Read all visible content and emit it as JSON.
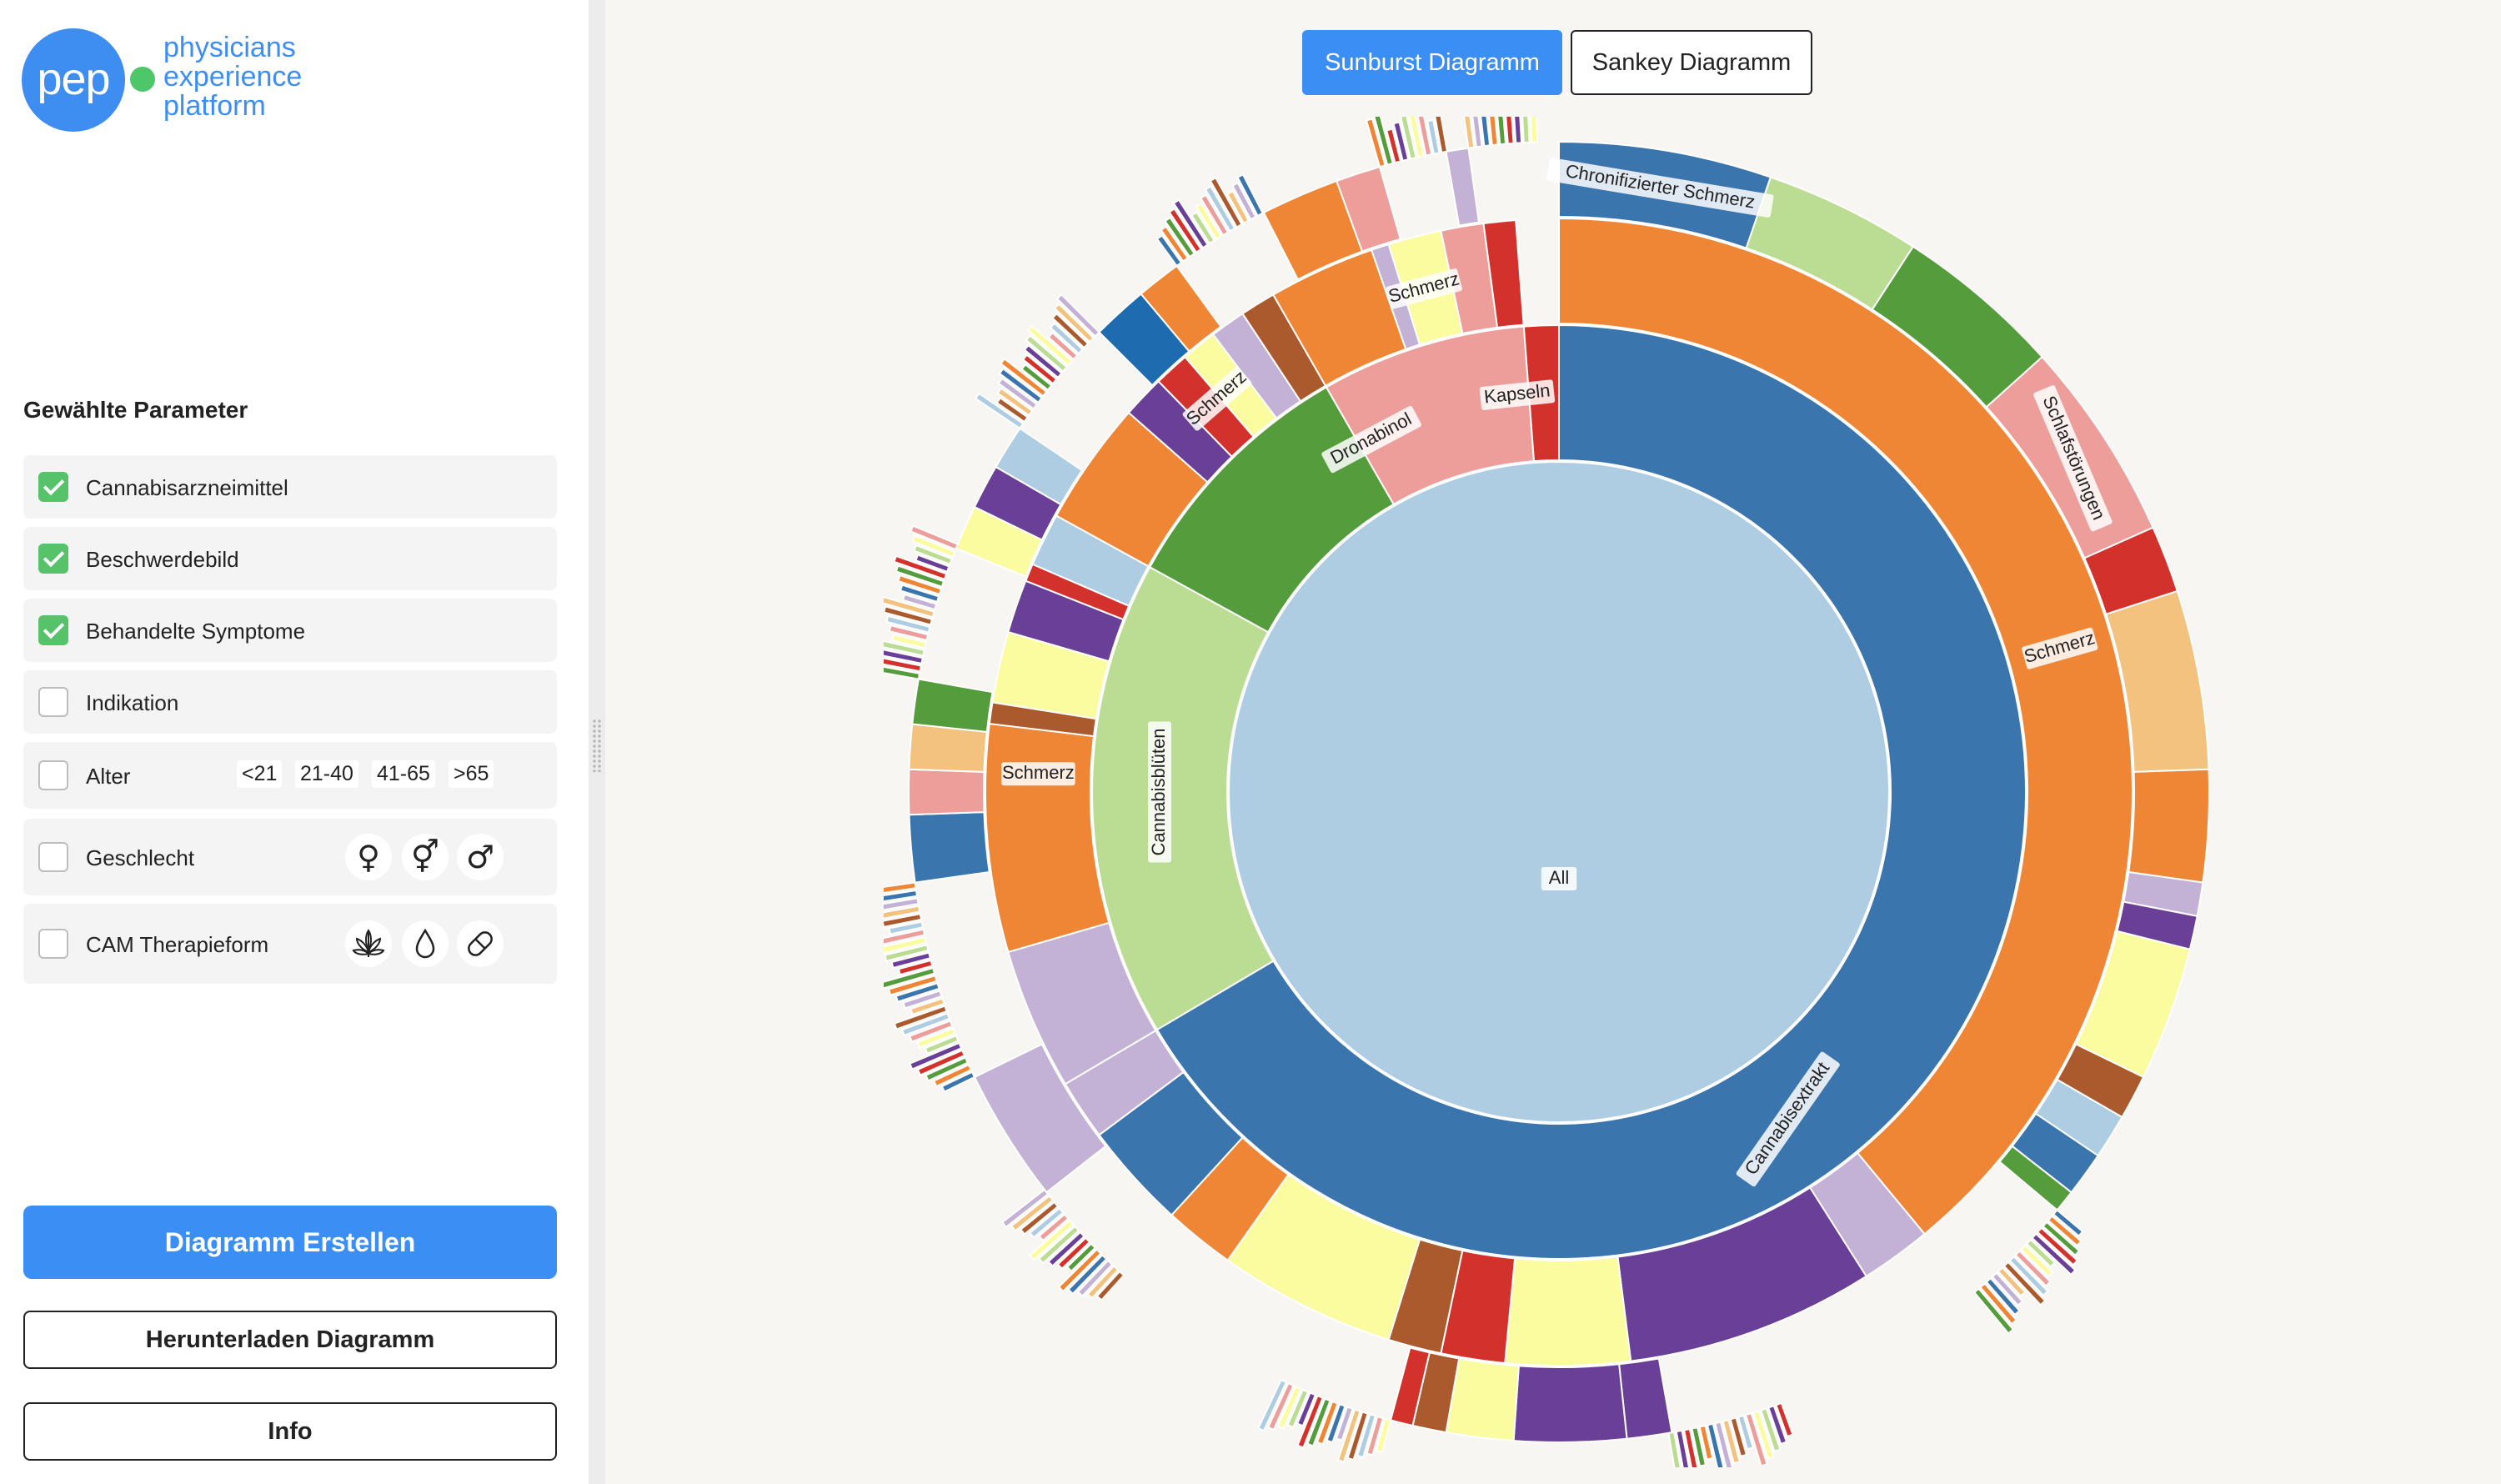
{
  "logo": {
    "mark": "pep",
    "lines": [
      "physicians",
      "experience",
      "platform"
    ]
  },
  "sidebar": {
    "title": "Gewählte Parameter",
    "params": [
      {
        "label": "Cannabisarzneimittel",
        "checked": true
      },
      {
        "label": "Beschwerdebild",
        "checked": true
      },
      {
        "label": "Behandelte Symptome",
        "checked": true
      },
      {
        "label": "Indikation",
        "checked": false
      },
      {
        "label": "Alter",
        "checked": false,
        "options": [
          "<21",
          "21-40",
          "41-65",
          ">65"
        ]
      },
      {
        "label": "Geschlecht",
        "checked": false,
        "icons": [
          "female-icon",
          "intersex-icon",
          "male-icon"
        ]
      },
      {
        "label": "CAM Therapieform",
        "checked": false,
        "icons": [
          "plant-icon",
          "drop-icon",
          "pill-icon"
        ]
      }
    ],
    "buttons": {
      "create": "Diagramm Erstellen",
      "download": "Herunterladen Diagramm",
      "info": "Info"
    }
  },
  "tabs": {
    "sunburst": "Sunburst Diagramm",
    "sankey": "Sankey Diagramm"
  },
  "chart_data": {
    "type": "sunburst",
    "root_label": "All",
    "labels": [
      "All",
      "Cannabisextrakt",
      "Cannabisblüten",
      "Dronabinol",
      "Kapseln",
      "Schmerz",
      "Chronifizierter Schmerz",
      "Schlafstörungen"
    ],
    "rings": [
      {
        "ring": 1,
        "segments": [
          {
            "label": "Cannabisextrakt",
            "share": 0.665,
            "color": "#3a75ad"
          },
          {
            "label": "Cannabisblüten",
            "share": 0.165,
            "color": "#bbdd93"
          },
          {
            "label": "Dronabinol",
            "share": 0.087,
            "color": "#549c3c"
          },
          {
            "label": "Kapseln",
            "share": 0.071,
            "color": "#ed9e9b"
          },
          {
            "label": "",
            "share": 0.012,
            "color": "#d3322c"
          }
        ]
      },
      {
        "ring": 2,
        "segments": [
          {
            "label": "Schmerz",
            "parent": "Cannabisextrakt",
            "share": 0.39,
            "color": "#ef8636"
          },
          {
            "label": "Schmerz",
            "parent": "Cannabisblüten",
            "share": 0.064,
            "color": "#ef8636"
          },
          {
            "label": "Schmerz",
            "parent": "Dronabinol",
            "share": 0.035,
            "color": "#ef8636"
          },
          {
            "label": "Schmerz",
            "parent": "Kapseln",
            "share": 0.03,
            "color": "#ef8636"
          }
        ]
      },
      {
        "ring": 3,
        "segments": [
          {
            "label": "Chronifizierter Schmerz",
            "parent": "Schmerz",
            "share": 0.055,
            "color": "#3a75ad"
          },
          {
            "label": "Schlafstörungen",
            "parent": "Schmerz",
            "share": 0.042,
            "color": "#ed9e9b"
          }
        ]
      }
    ]
  }
}
